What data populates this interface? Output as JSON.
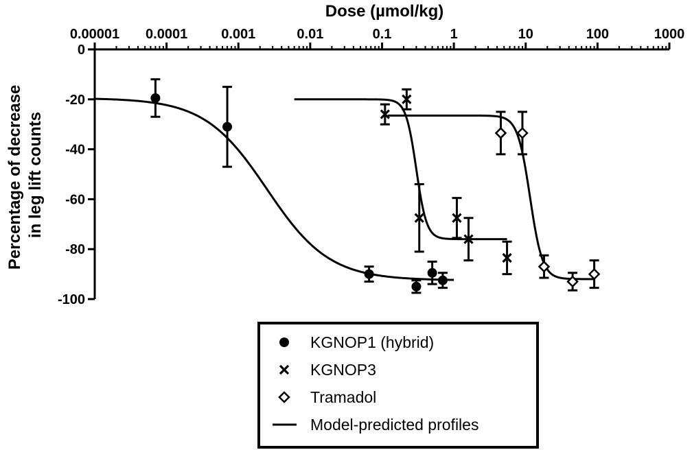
{
  "chart_data": {
    "type": "scatter",
    "xlabel": "Dose (µmol/kg)",
    "ylabel": [
      "Percentage of decrease",
      "in leg lift counts"
    ],
    "xscale": "log",
    "xlim": [
      1e-05,
      1000
    ],
    "ylim": [
      -100,
      0
    ],
    "x_ticks": [
      "0.00001",
      "0.0001",
      "0.001",
      "0.01",
      "0.1",
      "1",
      "10",
      "100",
      "1000"
    ],
    "y_ticks": [
      "0",
      "-20",
      "-40",
      "-60",
      "-80",
      "-100"
    ],
    "legend_position": "bottom-center",
    "series": [
      {
        "name": "KGNOP1 (hybrid)",
        "marker": "filled-circle",
        "points": [
          {
            "x": 7e-05,
            "y": -19.5,
            "err": 7.5
          },
          {
            "x": 0.0007,
            "y": -31,
            "err": 16
          },
          {
            "x": 0.066,
            "y": -90,
            "err": 3
          },
          {
            "x": 0.3,
            "y": -95,
            "err": 2.5
          },
          {
            "x": 0.5,
            "y": -89.5,
            "err": 4.5
          },
          {
            "x": 0.7,
            "y": -92.5,
            "err": 3
          }
        ],
        "model": {
          "top": -19.5,
          "bottom": -92.5,
          "ec50": 0.0025,
          "hill": 1.0,
          "xmin": 1e-05,
          "xmax": 1.0
        }
      },
      {
        "name": "KGNOP3",
        "marker": "x",
        "points": [
          {
            "x": 0.11,
            "y": -26,
            "err": 4
          },
          {
            "x": 0.22,
            "y": -20,
            "err": 4
          },
          {
            "x": 0.33,
            "y": -67.5,
            "err": 13.5
          },
          {
            "x": 1.1,
            "y": -67.5,
            "err": 8
          },
          {
            "x": 1.6,
            "y": -76,
            "err": 8.5
          },
          {
            "x": 5.5,
            "y": -83.5,
            "err": 6.5
          }
        ],
        "model": {
          "top": -20,
          "bottom": -76,
          "ec50": 0.3,
          "hill": 6,
          "xmin": 0.006,
          "xmax": 5.5
        }
      },
      {
        "name": "Tramadol",
        "marker": "open-diamond",
        "points": [
          {
            "x": 4.5,
            "y": -33.5,
            "err": 8.5
          },
          {
            "x": 9,
            "y": -33.5,
            "err": 8.5
          },
          {
            "x": 18,
            "y": -87,
            "err": 4.5
          },
          {
            "x": 45,
            "y": -93,
            "err": 3.5
          },
          {
            "x": 90,
            "y": -90,
            "err": 5.5
          }
        ],
        "model": {
          "top": -26.5,
          "bottom": -92,
          "ec50": 11.5,
          "hill": 5,
          "xmin": 0.12,
          "xmax": 90
        }
      }
    ],
    "legend": [
      {
        "marker": "filled-circle",
        "label": "KGNOP1 (hybrid)"
      },
      {
        "marker": "x",
        "label": "KGNOP3"
      },
      {
        "marker": "open-diamond",
        "label": "Tramadol"
      },
      {
        "marker": "line",
        "label": "Model-predicted profiles"
      }
    ]
  }
}
